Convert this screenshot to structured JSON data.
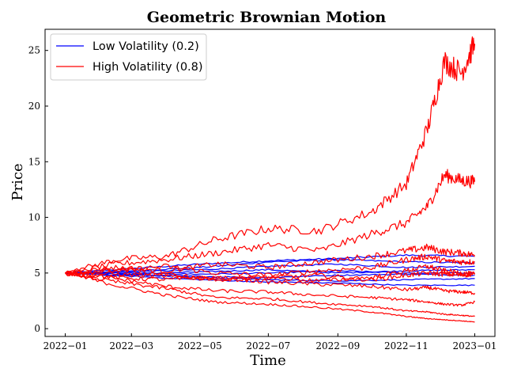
{
  "chart_data": {
    "type": "line",
    "title": "Geometric Brownian Motion",
    "xlabel": "Time",
    "ylabel": "Price",
    "xlim": [
      "2021-12-14",
      "2023-01-19"
    ],
    "ylim": [
      -0.7,
      26.9
    ],
    "x_ticks": [
      "2022-01-01",
      "2022-03-01",
      "2022-05-01",
      "2022-07-01",
      "2022-09-01",
      "2022-11-01",
      "2023-01-01"
    ],
    "x_tick_labels": [
      "2022−01",
      "2022−03",
      "2022−05",
      "2022−07",
      "2022−09",
      "2022−11",
      "2023−01"
    ],
    "y_ticks": [
      0,
      5,
      10,
      15,
      20,
      25
    ],
    "y_tick_labels": [
      "0",
      "5",
      "10",
      "15",
      "20",
      "25"
    ],
    "grid": false,
    "legend_position": "top-left",
    "legend": [
      {
        "label": "Low Volatility (0.2)",
        "color": "#0000ff"
      },
      {
        "label": "High Volatility (0.8)",
        "color": "#ff0000"
      }
    ],
    "series": [
      {
        "group": "Low Volatility (0.2)",
        "color": "#0000ff",
        "x": [
          "2022-01-01",
          "2022-03-01",
          "2022-05-01",
          "2022-07-01",
          "2022-09-01",
          "2022-11-01",
          "2023-01-01"
        ],
        "y": [
          5.0,
          5.4,
          5.8,
          6.1,
          6.3,
          6.6,
          6.5
        ]
      },
      {
        "group": "Low Volatility (0.2)",
        "color": "#0000ff",
        "x": [
          "2022-01-01",
          "2022-03-01",
          "2022-05-01",
          "2022-07-01",
          "2022-09-01",
          "2022-11-01",
          "2023-01-01"
        ],
        "y": [
          5.0,
          5.2,
          5.5,
          6.0,
          6.2,
          6.0,
          5.9
        ]
      },
      {
        "group": "Low Volatility (0.2)",
        "color": "#0000ff",
        "x": [
          "2022-01-01",
          "2022-03-01",
          "2022-05-01",
          "2022-07-01",
          "2022-09-01",
          "2022-11-01",
          "2023-01-01"
        ],
        "y": [
          5.0,
          5.1,
          5.3,
          5.6,
          5.8,
          5.5,
          5.6
        ]
      },
      {
        "group": "Low Volatility (0.2)",
        "color": "#0000ff",
        "x": [
          "2022-01-01",
          "2022-03-01",
          "2022-05-01",
          "2022-07-01",
          "2022-09-01",
          "2022-11-01",
          "2023-01-01"
        ],
        "y": [
          5.0,
          4.9,
          5.1,
          5.3,
          5.0,
          5.2,
          5.3
        ]
      },
      {
        "group": "Low Volatility (0.2)",
        "color": "#0000ff",
        "x": [
          "2022-01-01",
          "2022-03-01",
          "2022-05-01",
          "2022-07-01",
          "2022-09-01",
          "2022-11-01",
          "2023-01-01"
        ],
        "y": [
          5.0,
          5.0,
          4.9,
          5.0,
          5.2,
          5.0,
          5.0
        ]
      },
      {
        "group": "Low Volatility (0.2)",
        "color": "#0000ff",
        "x": [
          "2022-01-01",
          "2022-03-01",
          "2022-05-01",
          "2022-07-01",
          "2022-09-01",
          "2022-11-01",
          "2023-01-01"
        ],
        "y": [
          5.0,
          4.8,
          4.7,
          4.6,
          4.8,
          4.9,
          4.8
        ]
      },
      {
        "group": "Low Volatility (0.2)",
        "color": "#0000ff",
        "x": [
          "2022-01-01",
          "2022-03-01",
          "2022-05-01",
          "2022-07-01",
          "2022-09-01",
          "2022-11-01",
          "2023-01-01"
        ],
        "y": [
          5.0,
          4.9,
          4.6,
          4.4,
          4.3,
          4.4,
          4.5
        ]
      },
      {
        "group": "Low Volatility (0.2)",
        "color": "#0000ff",
        "x": [
          "2022-01-01",
          "2022-03-01",
          "2022-05-01",
          "2022-07-01",
          "2022-09-01",
          "2022-11-01",
          "2023-01-01"
        ],
        "y": [
          5.0,
          4.7,
          4.4,
          4.2,
          4.1,
          3.9,
          3.9
        ]
      },
      {
        "group": "High Volatility (0.8)",
        "color": "#ff0000",
        "x": [
          "2022-01-01",
          "2022-02-15",
          "2022-04-01",
          "2022-05-15",
          "2022-07-01",
          "2022-08-15",
          "2022-10-01",
          "2022-11-01",
          "2022-11-20",
          "2022-12-05",
          "2022-12-20",
          "2023-01-01"
        ],
        "y": [
          5.0,
          6.2,
          6.5,
          8.0,
          9.0,
          8.8,
          10.5,
          13.0,
          18.0,
          24.0,
          23.0,
          25.6
        ]
      },
      {
        "group": "High Volatility (0.8)",
        "color": "#ff0000",
        "x": [
          "2022-01-01",
          "2022-02-15",
          "2022-04-01",
          "2022-05-15",
          "2022-07-01",
          "2022-08-15",
          "2022-10-01",
          "2022-11-01",
          "2022-11-20",
          "2022-12-05",
          "2022-12-20",
          "2023-01-01"
        ],
        "y": [
          5.0,
          5.8,
          6.2,
          6.8,
          7.5,
          7.0,
          8.5,
          9.5,
          11.0,
          13.8,
          13.3,
          13.2
        ]
      },
      {
        "group": "High Volatility (0.8)",
        "color": "#ff0000",
        "x": [
          "2022-01-01",
          "2022-02-15",
          "2022-04-01",
          "2022-05-15",
          "2022-07-01",
          "2022-08-15",
          "2022-10-01",
          "2022-11-01",
          "2022-11-20",
          "2022-12-05",
          "2022-12-20",
          "2023-01-01"
        ],
        "y": [
          5.0,
          5.5,
          5.2,
          5.8,
          5.5,
          6.0,
          6.5,
          7.0,
          7.3,
          6.9,
          6.8,
          6.6
        ]
      },
      {
        "group": "High Volatility (0.8)",
        "color": "#ff0000",
        "x": [
          "2022-01-01",
          "2022-02-15",
          "2022-04-01",
          "2022-05-15",
          "2022-07-01",
          "2022-08-15",
          "2022-10-01",
          "2022-11-01",
          "2022-11-20",
          "2022-12-05",
          "2022-12-20",
          "2023-01-01"
        ],
        "y": [
          5.0,
          5.2,
          5.6,
          5.0,
          4.8,
          5.2,
          5.5,
          6.2,
          6.5,
          6.1,
          6.0,
          6.0
        ]
      },
      {
        "group": "High Volatility (0.8)",
        "color": "#ff0000",
        "x": [
          "2022-01-01",
          "2022-02-15",
          "2022-04-01",
          "2022-05-15",
          "2022-07-01",
          "2022-08-15",
          "2022-10-01",
          "2022-11-01",
          "2022-11-20",
          "2022-12-05",
          "2022-12-20",
          "2023-01-01"
        ],
        "y": [
          5.0,
          4.9,
          4.7,
          4.5,
          4.6,
          4.8,
          4.4,
          4.8,
          5.0,
          4.9,
          4.8,
          4.9
        ]
      },
      {
        "group": "High Volatility (0.8)",
        "color": "#ff0000",
        "x": [
          "2022-01-01",
          "2022-02-15",
          "2022-04-01",
          "2022-05-15",
          "2022-07-01",
          "2022-08-15",
          "2022-10-01",
          "2022-11-01",
          "2022-11-20",
          "2022-12-05",
          "2022-12-20",
          "2023-01-01"
        ],
        "y": [
          5.0,
          4.6,
          4.4,
          4.6,
          4.2,
          4.0,
          3.8,
          3.5,
          3.7,
          3.4,
          3.3,
          3.2
        ]
      },
      {
        "group": "High Volatility (0.8)",
        "color": "#ff0000",
        "x": [
          "2022-01-01",
          "2022-02-15",
          "2022-04-01",
          "2022-05-15",
          "2022-07-01",
          "2022-08-15",
          "2022-10-01",
          "2022-11-01",
          "2022-11-20",
          "2022-12-05",
          "2022-12-20",
          "2023-01-01"
        ],
        "y": [
          5.0,
          4.5,
          3.8,
          3.4,
          3.3,
          3.0,
          2.8,
          2.6,
          2.4,
          2.2,
          2.1,
          2.4
        ]
      },
      {
        "group": "High Volatility (0.8)",
        "color": "#ff0000",
        "x": [
          "2022-01-01",
          "2022-02-15",
          "2022-04-01",
          "2022-05-15",
          "2022-07-01",
          "2022-08-15",
          "2022-10-01",
          "2022-11-01",
          "2022-11-20",
          "2022-12-05",
          "2022-12-20",
          "2023-01-01"
        ],
        "y": [
          5.0,
          4.2,
          3.6,
          2.8,
          2.7,
          2.3,
          2.0,
          1.6,
          1.5,
          1.3,
          1.2,
          1.1
        ]
      },
      {
        "group": "High Volatility (0.8)",
        "color": "#ff0000",
        "x": [
          "2022-01-01",
          "2022-02-15",
          "2022-04-01",
          "2022-05-15",
          "2022-07-01",
          "2022-08-15",
          "2022-10-01",
          "2022-11-01",
          "2022-11-20",
          "2022-12-05",
          "2022-12-20",
          "2023-01-01"
        ],
        "y": [
          5.0,
          3.9,
          3.0,
          2.4,
          2.2,
          1.9,
          1.5,
          1.1,
          0.9,
          0.8,
          0.7,
          0.6
        ]
      },
      {
        "group": "High Volatility (0.8)",
        "color": "#ff0000",
        "x": [
          "2022-01-01",
          "2022-02-15",
          "2022-04-01",
          "2022-05-15",
          "2022-07-01",
          "2022-08-15",
          "2022-10-01",
          "2022-11-01",
          "2022-11-20",
          "2022-12-05",
          "2022-12-20",
          "2023-01-01"
        ],
        "y": [
          5.0,
          5.3,
          4.9,
          4.4,
          4.6,
          4.3,
          4.6,
          5.2,
          5.6,
          5.2,
          5.0,
          4.9
        ]
      }
    ]
  }
}
